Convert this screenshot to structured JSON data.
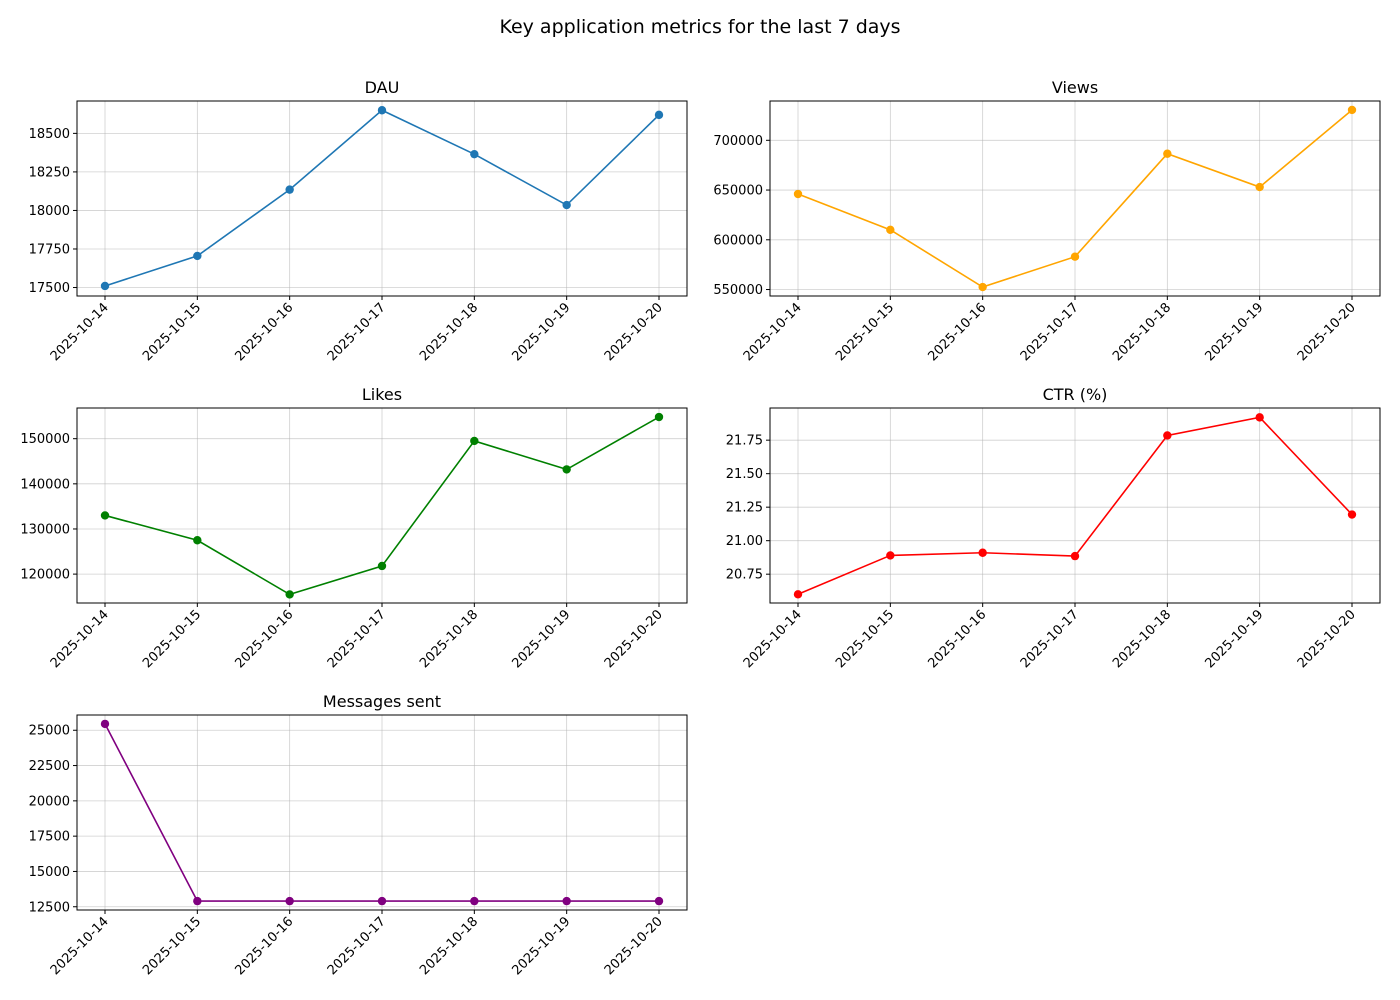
{
  "figure_title": "Key application metrics for the last 7 days",
  "chart_data": [
    {
      "type": "line",
      "title": "DAU",
      "xlabel": "",
      "ylabel": "",
      "x": [
        "2025-10-14",
        "2025-10-15",
        "2025-10-16",
        "2025-10-17",
        "2025-10-18",
        "2025-10-19",
        "2025-10-20"
      ],
      "values": [
        17510,
        17705,
        18135,
        18650,
        18365,
        18035,
        18620
      ],
      "ylim": [
        17445,
        18710
      ],
      "yticks": [
        17500,
        17750,
        18000,
        18250,
        18500
      ],
      "color": "#1f77b4",
      "grid": true,
      "marker": "circle"
    },
    {
      "type": "line",
      "title": "Views",
      "xlabel": "",
      "ylabel": "",
      "x": [
        "2025-10-14",
        "2025-10-15",
        "2025-10-16",
        "2025-10-17",
        "2025-10-18",
        "2025-10-19",
        "2025-10-20"
      ],
      "values": [
        646000,
        610000,
        552500,
        583000,
        686500,
        653000,
        730500
      ],
      "ylim": [
        543500,
        739500
      ],
      "yticks": [
        550000,
        600000,
        650000,
        700000
      ],
      "color": "#ffa500",
      "grid": true,
      "marker": "circle"
    },
    {
      "type": "line",
      "title": "Likes",
      "xlabel": "",
      "ylabel": "",
      "x": [
        "2025-10-14",
        "2025-10-15",
        "2025-10-16",
        "2025-10-17",
        "2025-10-18",
        "2025-10-19",
        "2025-10-20"
      ],
      "values": [
        133000,
        127500,
        115500,
        121800,
        149500,
        143200,
        154800
      ],
      "ylim": [
        113600,
        156800
      ],
      "yticks": [
        120000,
        130000,
        140000,
        150000
      ],
      "color": "#008000",
      "grid": true,
      "marker": "circle"
    },
    {
      "type": "line",
      "title": "CTR (%)",
      "xlabel": "",
      "ylabel": "",
      "x": [
        "2025-10-14",
        "2025-10-15",
        "2025-10-16",
        "2025-10-17",
        "2025-10-18",
        "2025-10-19",
        "2025-10-20"
      ],
      "values": [
        20.6,
        20.89,
        20.91,
        20.885,
        21.785,
        21.92,
        21.195
      ],
      "ylim": [
        20.535,
        21.99
      ],
      "yticks": [
        20.75,
        21.0,
        21.25,
        21.5,
        21.75
      ],
      "color": "#ff0000",
      "grid": true,
      "marker": "circle"
    },
    {
      "type": "line",
      "title": "Messages sent",
      "xlabel": "",
      "ylabel": "",
      "x": [
        "2025-10-14",
        "2025-10-15",
        "2025-10-16",
        "2025-10-17",
        "2025-10-18",
        "2025-10-19",
        "2025-10-20"
      ],
      "values": [
        25450,
        12900,
        12900,
        12900,
        12900,
        12900,
        12900
      ],
      "ylim": [
        12270,
        26080
      ],
      "yticks": [
        12500,
        15000,
        17500,
        20000,
        22500,
        25000
      ],
      "color": "#800080",
      "grid": true,
      "marker": "circle"
    }
  ]
}
